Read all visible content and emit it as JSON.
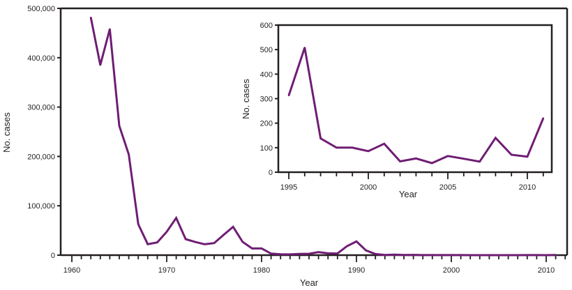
{
  "colors": {
    "line": "#6f1d74",
    "axis": "#231f20"
  },
  "chart_data": [
    {
      "type": "line",
      "xlabel": "Year",
      "ylabel": "No. cases",
      "xlim": [
        1959,
        2012
      ],
      "ylim": [
        0,
        500000
      ],
      "xticks": [
        1960,
        1970,
        1980,
        1990,
        2000,
        2010
      ],
      "yticks": [
        0,
        100000,
        200000,
        300000,
        400000,
        500000
      ],
      "ytick_labels": [
        "0",
        "100,000",
        "200,000",
        "300,000",
        "400,000",
        "500,000"
      ],
      "grid": false,
      "x": [
        1962,
        1963,
        1964,
        1965,
        1966,
        1967,
        1968,
        1969,
        1970,
        1971,
        1972,
        1973,
        1974,
        1975,
        1976,
        1977,
        1978,
        1979,
        1980,
        1981,
        1982,
        1983,
        1984,
        1985,
        1986,
        1987,
        1988,
        1989,
        1990,
        1991,
        1992,
        1993,
        1994,
        1995,
        1996,
        1997,
        1998,
        1999,
        2000,
        2001,
        2002,
        2003,
        2004,
        2005,
        2006,
        2007,
        2008,
        2009,
        2010,
        2011
      ],
      "values": [
        481530,
        385156,
        458083,
        261904,
        204136,
        62705,
        22231,
        25826,
        47351,
        75290,
        32275,
        26690,
        22094,
        24374,
        41126,
        57345,
        26871,
        13597,
        13506,
        3124,
        1714,
        1497,
        2587,
        2822,
        6282,
        3655,
        3396,
        18193,
        27786,
        9643,
        2237,
        312,
        963,
        313,
        508,
        138,
        100,
        100,
        86,
        116,
        44,
        56,
        37,
        66,
        55,
        43,
        140,
        71,
        63,
        220
      ]
    },
    {
      "type": "line",
      "xlabel": "Year",
      "ylabel": "No. cases",
      "xlim": [
        1994.3,
        2011.7
      ],
      "ylim": [
        0,
        600
      ],
      "xticks": [
        1995,
        2000,
        2005,
        2010
      ],
      "yticks": [
        0,
        100,
        200,
        300,
        400,
        500,
        600
      ],
      "ytick_labels": [
        "0",
        "100",
        "200",
        "300",
        "400",
        "500",
        "600"
      ],
      "grid": false,
      "x": [
        1995,
        1996,
        1997,
        1998,
        1999,
        2000,
        2001,
        2002,
        2003,
        2004,
        2005,
        2006,
        2007,
        2008,
        2009,
        2010,
        2011
      ],
      "values": [
        313,
        508,
        138,
        100,
        100,
        86,
        116,
        44,
        56,
        37,
        66,
        55,
        43,
        140,
        71,
        63,
        220
      ]
    }
  ]
}
